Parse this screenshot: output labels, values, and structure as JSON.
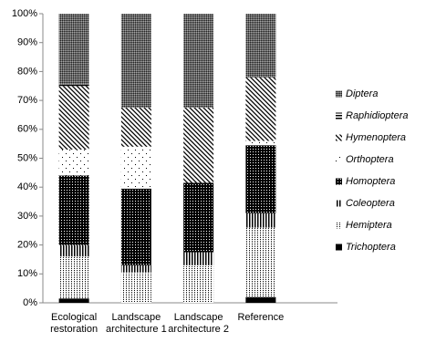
{
  "chart_data": {
    "type": "stacked_bar",
    "categories": [
      "Ecological restoration",
      "Landscape architecture 1",
      "Landscape architecture 2",
      "Reference"
    ],
    "series": [
      {
        "name": "Trichoptera",
        "color": "#000000",
        "pattern": "solid",
        "values": [
          1.5,
          0,
          0,
          2
        ]
      },
      {
        "name": "Hemiptera",
        "color": "#000000",
        "pattern": "fine-dots",
        "values": [
          14.5,
          10.5,
          13,
          24
        ]
      },
      {
        "name": "Coleoptera",
        "color": "#000000",
        "pattern": "vertical",
        "values": [
          4,
          2.5,
          4.5,
          5
        ]
      },
      {
        "name": "Homoptera",
        "color": "#000000",
        "pattern": "dark-check",
        "values": [
          24,
          26.5,
          24,
          23.5
        ]
      },
      {
        "name": "Orthoptera",
        "color": "#000000",
        "pattern": "sparse-dots",
        "values": [
          9,
          14.5,
          0,
          1.5
        ]
      },
      {
        "name": "Hymenoptera",
        "color": "#000000",
        "pattern": "diagonal",
        "values": [
          22,
          13.5,
          26,
          22
        ]
      },
      {
        "name": "Raphidioptera",
        "color": "#000000",
        "pattern": "horizontal",
        "values": [
          0.5,
          0,
          0,
          0
        ]
      },
      {
        "name": "Diptera",
        "color": "#000000",
        "pattern": "dense-grey",
        "values": [
          24.5,
          32.5,
          32.5,
          22
        ]
      }
    ],
    "ylim": [
      0,
      100
    ],
    "yticks": [
      {
        "value": 0,
        "label": "0%"
      },
      {
        "value": 10,
        "label": "10%"
      },
      {
        "value": 20,
        "label": "20%"
      },
      {
        "value": 30,
        "label": "30%"
      },
      {
        "value": 40,
        "label": "40%"
      },
      {
        "value": 50,
        "label": "50%"
      },
      {
        "value": 60,
        "label": "60%"
      },
      {
        "value": 70,
        "label": "70%"
      },
      {
        "value": 80,
        "label": "80%"
      },
      {
        "value": 90,
        "label": "90%"
      },
      {
        "value": 100,
        "label": "100%"
      }
    ],
    "grid": false,
    "legend": "right"
  }
}
